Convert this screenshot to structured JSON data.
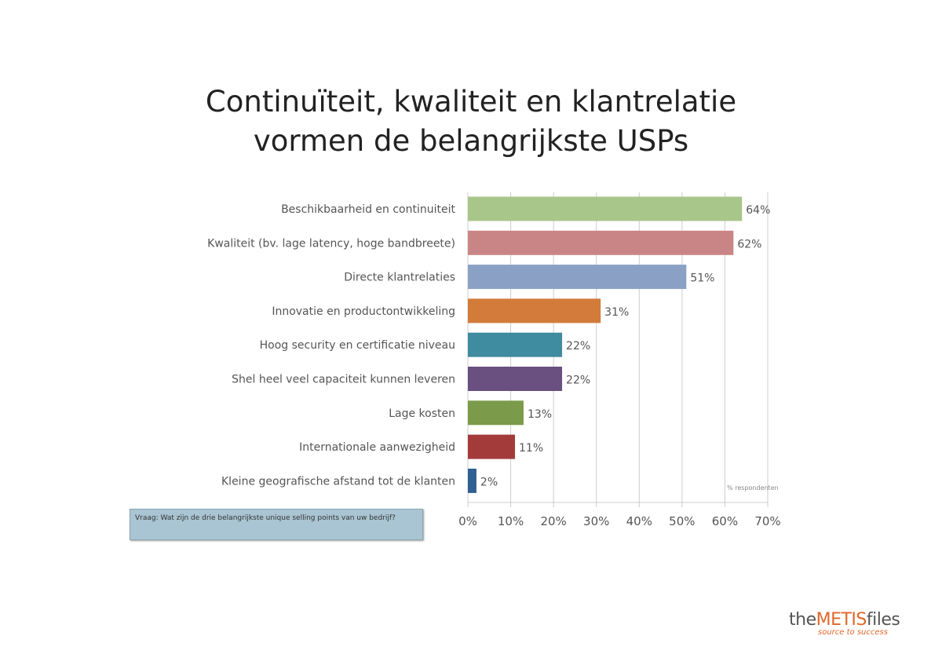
{
  "chart_data": {
    "type": "bar",
    "orientation": "horizontal",
    "title": "Continuïteit, kwaliteit en klantrelatie vormen de belangrijkste USPs",
    "title_lines": [
      "Continuïteit, kwaliteit en klantrelatie",
      "vormen de belangrijkste USPs"
    ],
    "categories": [
      "Beschikbaarheid en continuiteit",
      "Kwaliteit (bv. lage latency, hoge bandbreete)",
      "Directe klantrelaties",
      "Innovatie en productontwikkeling",
      "Hoog security en certificatie niveau",
      "Shel heel veel capaciteit kunnen leveren",
      "Lage kosten",
      "Internationale aanwezigheid",
      "Kleine geografische afstand tot de klanten"
    ],
    "values": [
      64,
      62,
      51,
      31,
      22,
      22,
      13,
      11,
      2
    ],
    "value_labels": [
      "64%",
      "62%",
      "51%",
      "31%",
      "22%",
      "22%",
      "13%",
      "11%",
      "2%"
    ],
    "colors": [
      "#a9c68a",
      "#c98586",
      "#8aa1c5",
      "#d27b3b",
      "#3f8b9f",
      "#6a4f81",
      "#7b9a4a",
      "#a33b3b",
      "#2f5f93"
    ],
    "xlim": [
      0,
      70
    ],
    "xticks": [
      "0%",
      "10%",
      "20%",
      "30%",
      "40%",
      "50%",
      "60%",
      "70%"
    ],
    "xlabel": "% respondenten",
    "grid": true
  },
  "question": "Vraag: Wat zijn de drie belangrijkste unique selling points van uw bedrijf?",
  "logo": {
    "the": "the",
    "metis": "METIS",
    "files": "files",
    "tagline": "source to success"
  }
}
